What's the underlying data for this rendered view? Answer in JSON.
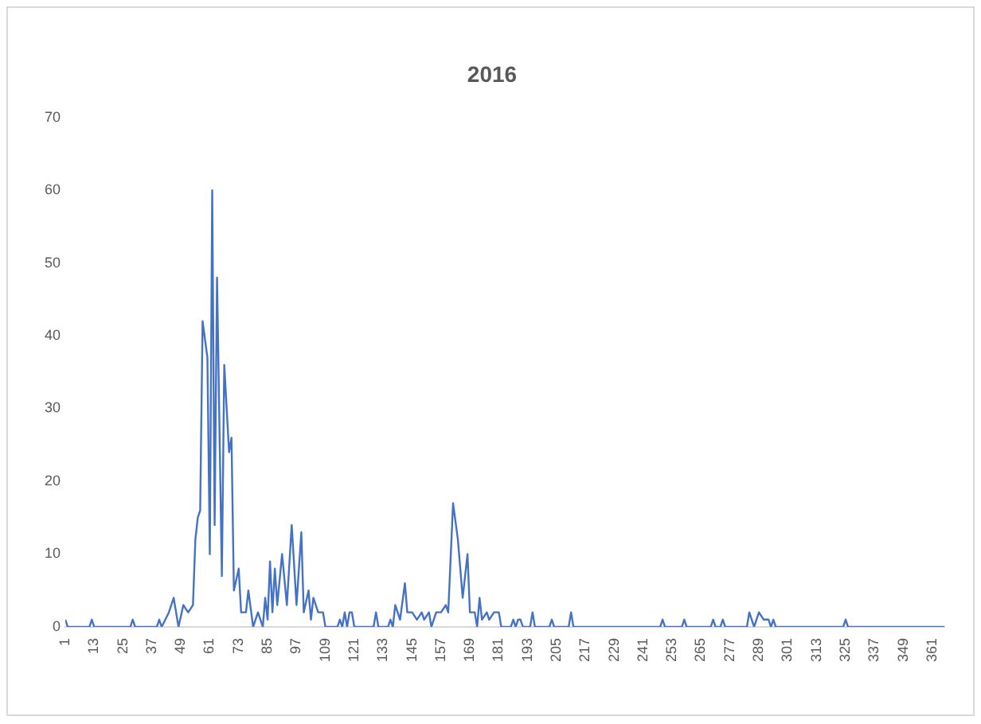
{
  "chart_data": {
    "type": "line",
    "title": "2016",
    "xlim": [
      1,
      366
    ],
    "xticks": [
      1,
      13,
      25,
      37,
      49,
      61,
      73,
      85,
      97,
      109,
      121,
      133,
      145,
      157,
      169,
      181,
      193,
      205,
      217,
      229,
      241,
      253,
      265,
      277,
      289,
      301,
      313,
      325,
      337,
      349,
      361
    ],
    "ylim": [
      0,
      70
    ],
    "yticks": [
      0,
      10,
      20,
      30,
      40,
      50,
      60,
      70
    ],
    "grid": false,
    "legend": false,
    "marker": "none",
    "series": [
      {
        "color": "#4472c4",
        "x": [
          1,
          2,
          11,
          12,
          13,
          28,
          29,
          30,
          39,
          40,
          41,
          44,
          46,
          48,
          50,
          52,
          54,
          55,
          56,
          57,
          58,
          60,
          61,
          62,
          63,
          64,
          66,
          67,
          69,
          70,
          71,
          73,
          74,
          76,
          77,
          79,
          81,
          83,
          84,
          85,
          86,
          87,
          88,
          89,
          91,
          93,
          95,
          97,
          99,
          100,
          102,
          103,
          104,
          106,
          108,
          109,
          114,
          115,
          116,
          117,
          118,
          119,
          120,
          121,
          129,
          130,
          131,
          135,
          136,
          137,
          138,
          140,
          142,
          143,
          145,
          147,
          149,
          150,
          152,
          153,
          155,
          157,
          159,
          160,
          162,
          164,
          166,
          168,
          169,
          171,
          172,
          173,
          174,
          176,
          177,
          179,
          181,
          182,
          186,
          187,
          188,
          189,
          190,
          191,
          194,
          195,
          196,
          202,
          203,
          204,
          210,
          211,
          212,
          248,
          249,
          250,
          257,
          258,
          259,
          269,
          270,
          271,
          273,
          274,
          275,
          284,
          285,
          287,
          289,
          291,
          293,
          294,
          295,
          296,
          324,
          325,
          326,
          366
        ],
        "values": [
          1,
          0,
          0,
          1,
          0,
          0,
          1,
          0,
          0,
          1,
          0,
          2,
          4,
          0,
          3,
          2,
          3,
          12,
          15,
          16,
          42,
          37,
          10,
          60,
          14,
          48,
          7,
          36,
          24,
          26,
          5,
          8,
          2,
          2,
          5,
          0,
          2,
          0,
          4,
          1,
          9,
          2,
          8,
          3,
          10,
          3,
          14,
          3,
          13,
          2,
          5,
          1,
          4,
          2,
          2,
          0,
          0,
          1,
          0,
          2,
          0,
          2,
          2,
          0,
          0,
          2,
          0,
          0,
          1,
          0,
          3,
          1,
          6,
          2,
          2,
          1,
          2,
          1,
          2,
          0,
          2,
          2,
          3,
          2,
          17,
          12,
          4,
          10,
          2,
          2,
          0,
          4,
          1,
          2,
          1,
          2,
          2,
          0,
          0,
          1,
          0,
          1,
          1,
          0,
          0,
          2,
          0,
          0,
          1,
          0,
          0,
          2,
          0,
          0,
          1,
          0,
          0,
          1,
          0,
          0,
          1,
          0,
          0,
          1,
          0,
          0,
          2,
          0,
          2,
          1,
          1,
          0,
          1,
          0,
          0,
          1,
          0,
          0
        ]
      }
    ]
  }
}
